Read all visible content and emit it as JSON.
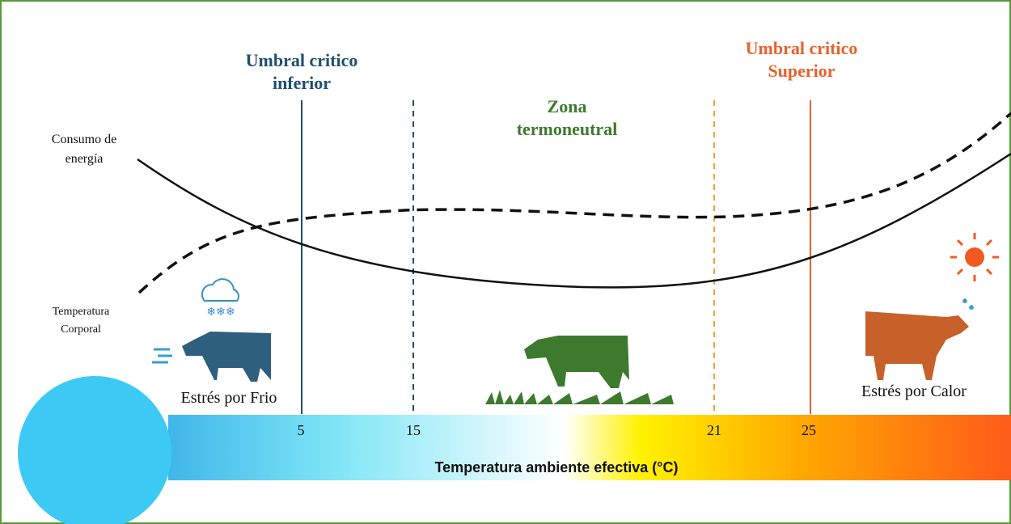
{
  "thresholds": [
    {
      "lines": [
        "Umbral critico",
        "inferior"
      ]
    },
    {
      "lines": [
        "Umbral critico",
        "Superior"
      ]
    }
  ],
  "zone": {
    "lines": [
      "Zona",
      "termoneutral"
    ]
  },
  "curves": [
    {
      "lines": [
        "Consumo de",
        "energía"
      ]
    },
    {
      "lines": [
        "Temperatura",
        "Corporal"
      ]
    }
  ],
  "stress": [
    "Estrés por Frio",
    "Estrés por Calor"
  ],
  "axis": {
    "title": "Temperatura ambiente efectiva (°C)",
    "ticks": [
      5,
      15,
      21,
      25
    ]
  }
}
